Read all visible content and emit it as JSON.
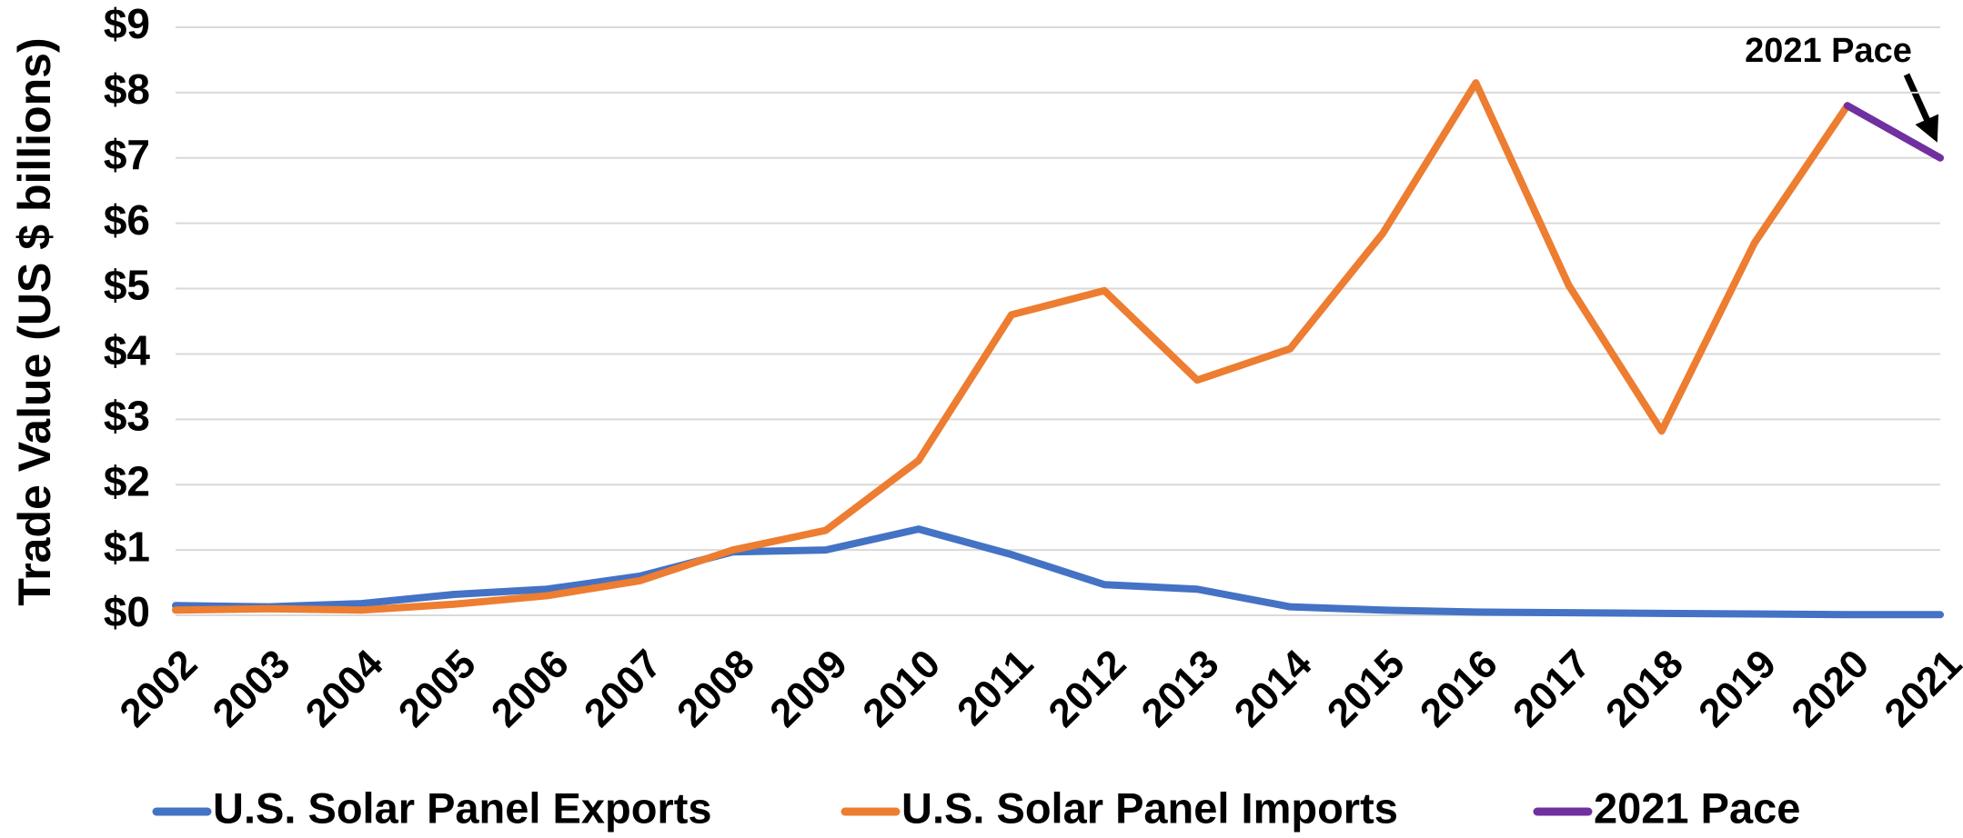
{
  "chart_data": {
    "type": "line",
    "y_label": "Trade Value (US $ billions)",
    "annotation": "2021 Pace",
    "categories": [
      "2002",
      "2003",
      "2004",
      "2005",
      "2006",
      "2007",
      "2008",
      "2009",
      "2010",
      "2011",
      "2012",
      "2013",
      "2014",
      "2015",
      "2016",
      "2017",
      "2018",
      "2019",
      "2020",
      "2021"
    ],
    "series": [
      {
        "name": "U.S. Solar Panel Exports",
        "color": "#4472c4",
        "values": [
          0.15,
          0.13,
          0.18,
          0.32,
          0.4,
          0.6,
          0.97,
          1.0,
          1.32,
          0.93,
          0.47,
          0.4,
          0.13,
          0.08,
          0.05,
          0.04,
          0.03,
          0.02,
          0.01,
          0.01
        ]
      },
      {
        "name": "U.S. Solar Panel Imports",
        "color": "#ed7d31",
        "values": [
          0.08,
          0.1,
          0.08,
          0.17,
          0.3,
          0.53,
          1.0,
          1.3,
          2.37,
          4.6,
          4.97,
          3.6,
          4.08,
          5.85,
          8.15,
          5.05,
          2.82,
          5.7,
          7.8,
          null
        ]
      },
      {
        "name": "2021 Pace",
        "color": "#7030a0",
        "values": [
          null,
          null,
          null,
          null,
          null,
          null,
          null,
          null,
          null,
          null,
          null,
          null,
          null,
          null,
          null,
          null,
          null,
          null,
          7.8,
          7.0
        ]
      }
    ],
    "ylim": [
      0,
      9
    ],
    "yticks": [
      {
        "value": 0,
        "label": "$0"
      },
      {
        "value": 1,
        "label": "$1"
      },
      {
        "value": 2,
        "label": "$2"
      },
      {
        "value": 3,
        "label": "$3"
      },
      {
        "value": 4,
        "label": "$4"
      },
      {
        "value": 5,
        "label": "$5"
      },
      {
        "value": 6,
        "label": "$6"
      },
      {
        "value": 7,
        "label": "$7"
      },
      {
        "value": 8,
        "label": "$8"
      },
      {
        "value": 9,
        "label": "$9"
      }
    ],
    "grid": true
  }
}
